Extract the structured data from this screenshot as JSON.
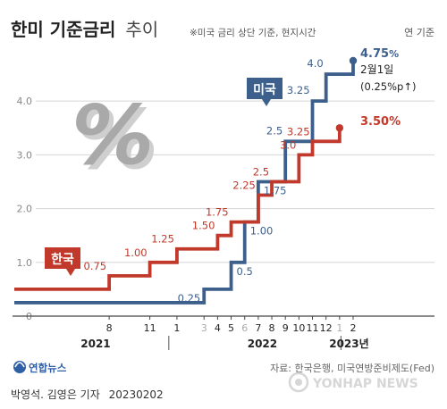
{
  "header": {
    "title": "한미 기준금리",
    "title_suffix": "추이",
    "note": "※미국 금리 상단 기준, 현지시간",
    "unit": "연 기준"
  },
  "chart_data": {
    "type": "line",
    "x_unit": "month index from Jan 2021 (1 = Jan 2021, 26 = Feb 2023)",
    "ylim": [
      0,
      4.75
    ],
    "yticks": [
      0,
      1.0,
      2.0,
      3.0,
      4.0
    ],
    "ytick_labels": [
      "0",
      "1.0",
      "2.0",
      "3.0",
      "4.0"
    ],
    "grid": "horizontal",
    "x_ticks": [
      {
        "x": 8,
        "label": "8",
        "color": "#222222"
      },
      {
        "x": 11,
        "label": "11",
        "color": "#222222"
      },
      {
        "x": 13,
        "label": "1",
        "color": "#222222"
      },
      {
        "x": 15,
        "label": "3",
        "color": "#aaaaaa"
      },
      {
        "x": 16,
        "label": "4",
        "color": "#222222"
      },
      {
        "x": 17,
        "label": "5",
        "color": "#222222"
      },
      {
        "x": 18,
        "label": "6",
        "color": "#aaaaaa"
      },
      {
        "x": 19,
        "label": "7",
        "color": "#222222"
      },
      {
        "x": 20,
        "label": "8",
        "color": "#222222"
      },
      {
        "x": 21,
        "label": "9",
        "color": "#222222"
      },
      {
        "x": 22,
        "label": "10",
        "color": "#222222"
      },
      {
        "x": 23,
        "label": "11",
        "color": "#222222"
      },
      {
        "x": 24,
        "label": "12",
        "color": "#222222"
      },
      {
        "x": 25,
        "label": "1",
        "color": "#aaaaaa"
      },
      {
        "x": 26,
        "label": "2",
        "color": "#222222"
      }
    ],
    "years": [
      {
        "label": "2021",
        "x": 7
      },
      {
        "label": "2022",
        "x": 19.3
      },
      {
        "label": "2023년",
        "x": 25.7
      }
    ],
    "series": [
      {
        "name": "미국",
        "color": "#3d5f8c",
        "steps": [
          [
            1,
            0.25
          ],
          [
            15,
            0.5
          ],
          [
            17,
            1.0
          ],
          [
            18,
            1.75
          ],
          [
            19,
            2.5
          ],
          [
            21,
            3.25
          ],
          [
            23,
            4.0
          ],
          [
            24,
            4.5
          ],
          [
            26,
            4.75
          ]
        ],
        "labels": [
          "0.25",
          "0.5",
          "1.00",
          "1.75",
          "2.5",
          "3.25",
          "4.0"
        ],
        "end_value": "4.75",
        "end_suffix": "%",
        "end_note": "2월1일",
        "end_note2": "(0.25%p↑)"
      },
      {
        "name": "한국",
        "color": "#c0392b",
        "steps": [
          [
            1,
            0.5
          ],
          [
            8,
            0.75
          ],
          [
            11,
            1.0
          ],
          [
            13,
            1.25
          ],
          [
            16,
            1.5
          ],
          [
            17,
            1.75
          ],
          [
            19,
            2.25
          ],
          [
            20,
            2.5
          ],
          [
            22,
            3.0
          ],
          [
            23,
            3.25
          ],
          [
            25,
            3.5
          ]
        ],
        "labels": [
          "0.75",
          "1.00",
          "1.25",
          "1.50",
          "1.75",
          "2.25",
          "2.5",
          "3.0",
          "3.25"
        ],
        "end_value": "3.50%"
      }
    ]
  },
  "footer": {
    "logo_text": "연합뉴스",
    "source": "자료: 한국은행, 미국연방준비제도(Fed)",
    "credit": "박영석. 김영은 기자",
    "date": "20230202",
    "watermark": "YONHAP NEWS"
  },
  "colors": {
    "us": "#3d5f8c",
    "kr": "#c0392b",
    "percent_icon": "#b5b5b5"
  },
  "icons": {
    "percent": "percent-symbol-icon",
    "logo": "yonhap-logo-icon"
  }
}
